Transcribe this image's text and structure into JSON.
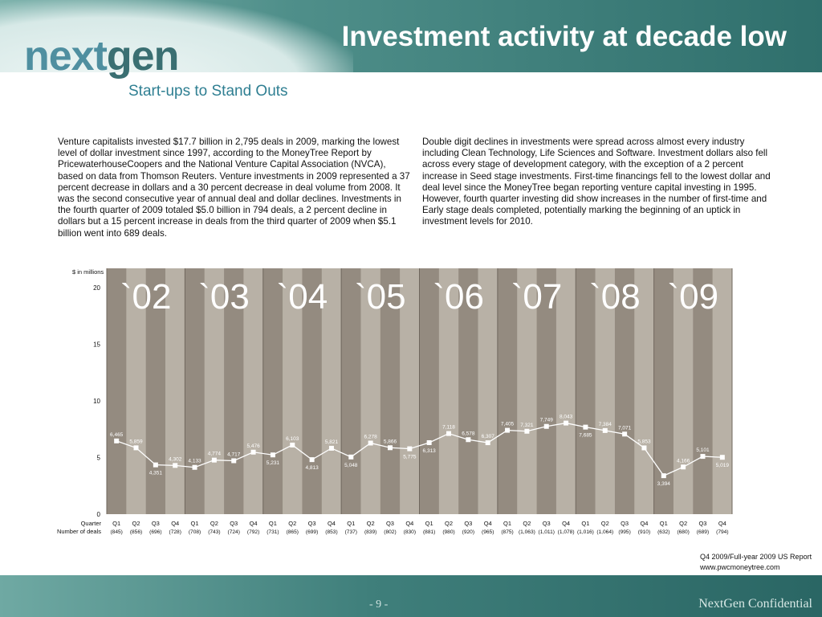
{
  "header": {
    "logo_part1": "next",
    "logo_part2": "gen",
    "tagline": "Start-ups to Stand Outs",
    "title": "Investment activity at decade low"
  },
  "paragraphs": {
    "left": "Venture capitalists invested $17.7 billion in 2,795 deals in 2009, marking the lowest level of dollar investment since 1997, according to the MoneyTree Report by PricewaterhouseCoopers and the National Venture Capital Association (NVCA), based on data from Thomson Reuters. Venture investments in 2009 represented a 37 percent decrease in dollars and a 30 percent decrease in deal volume from 2008. It was the second consecutive year of annual deal and dollar declines. Investments in the fourth quarter of 2009 totaled $5.0 billion in 794 deals, a 2 percent decline in dollars but a 15 percent increase in deals from the third quarter of 2009 when $5.1 billion went into 689 deals.",
    "right": "Double digit declines in investments were spread across almost every industry including Clean Technology, Life Sciences and Software. Investment dollars also fell across every stage of development category, with the exception of a 2 percent increase in Seed stage investments. First-time financings fell to the lowest dollar and deal level since the MoneyTree began reporting venture capital investing in 1995. However, fourth quarter investing did show increases in the number of first-time and Early stage deals completed, potentially marking the beginning of an uptick in investment levels for 2010."
  },
  "chart_data": {
    "type": "line",
    "ylabel": "$ in millions",
    "ylim": [
      0,
      20
    ],
    "yticks": [
      0,
      5,
      10,
      15,
      20
    ],
    "years": [
      "`02",
      "`03",
      "`04",
      "`05",
      "`06",
      "`07",
      "`08",
      "`09"
    ],
    "row_label_quarter": "Quarter",
    "row_label_deals": "Number of deals",
    "quarters": [
      "Q1",
      "Q2",
      "Q3",
      "Q4",
      "Q1",
      "Q2",
      "Q3",
      "Q4",
      "Q1",
      "Q2",
      "Q3",
      "Q4",
      "Q1",
      "Q2",
      "Q3",
      "Q4",
      "Q1",
      "Q2",
      "Q3",
      "Q4",
      "Q1",
      "Q2",
      "Q3",
      "Q4",
      "Q1",
      "Q2",
      "Q3",
      "Q4",
      "Q1",
      "Q2",
      "Q3",
      "Q4"
    ],
    "deals": [
      "(845)",
      "(856)",
      "(696)",
      "(728)",
      "(708)",
      "(743)",
      "(724)",
      "(792)",
      "(731)",
      "(865)",
      "(699)",
      "(853)",
      "(737)",
      "(839)",
      "(802)",
      "(830)",
      "(881)",
      "(980)",
      "(920)",
      "(965)",
      "(875)",
      "(1,063)",
      "(1,011)",
      "(1,078)",
      "(1,016)",
      "(1,064)",
      "(995)",
      "(910)",
      "(632)",
      "(680)",
      "(689)",
      "(794)"
    ],
    "values": [
      6465,
      5859,
      4351,
      4302,
      4133,
      4774,
      4717,
      5476,
      5231,
      6103,
      4813,
      5821,
      5048,
      6278,
      5866,
      5775,
      6313,
      7118,
      6578,
      6307,
      7405,
      7321,
      7749,
      8043,
      7685,
      7384,
      7071,
      5853,
      3394,
      4166,
      5101,
      5019
    ],
    "value_labels": [
      "6,465",
      "5,859",
      "4,351",
      "4,302",
      "4,133",
      "4,774",
      "4,717",
      "5,476",
      "5,231",
      "6,103",
      "4,813",
      "5,821",
      "5,048",
      "6,278",
      "5,866",
      "5,775",
      "6,313",
      "7,118",
      "6,578",
      "6,307",
      "7,405",
      "7,321",
      "7,749",
      "8,043",
      "7,685",
      "7,384",
      "7,071",
      "5,853",
      "3,394",
      "4,166",
      "5,101",
      "5,019"
    ],
    "label_below": [
      false,
      false,
      true,
      false,
      false,
      false,
      false,
      false,
      true,
      false,
      true,
      false,
      true,
      false,
      false,
      true,
      true,
      false,
      false,
      false,
      false,
      false,
      false,
      false,
      true,
      false,
      false,
      false,
      true,
      false,
      false,
      true
    ],
    "colors": {
      "dark": "#948b80",
      "light": "#b8b1a6",
      "line": "#ffffff",
      "year_text": "#ffffff"
    }
  },
  "source": {
    "line1": "Q4 2009/Full-year 2009 US Report",
    "line2": "www.pwcmoneytree.com"
  },
  "footer": {
    "page": "- 9 -",
    "confidential": "NextGen Confidential"
  }
}
